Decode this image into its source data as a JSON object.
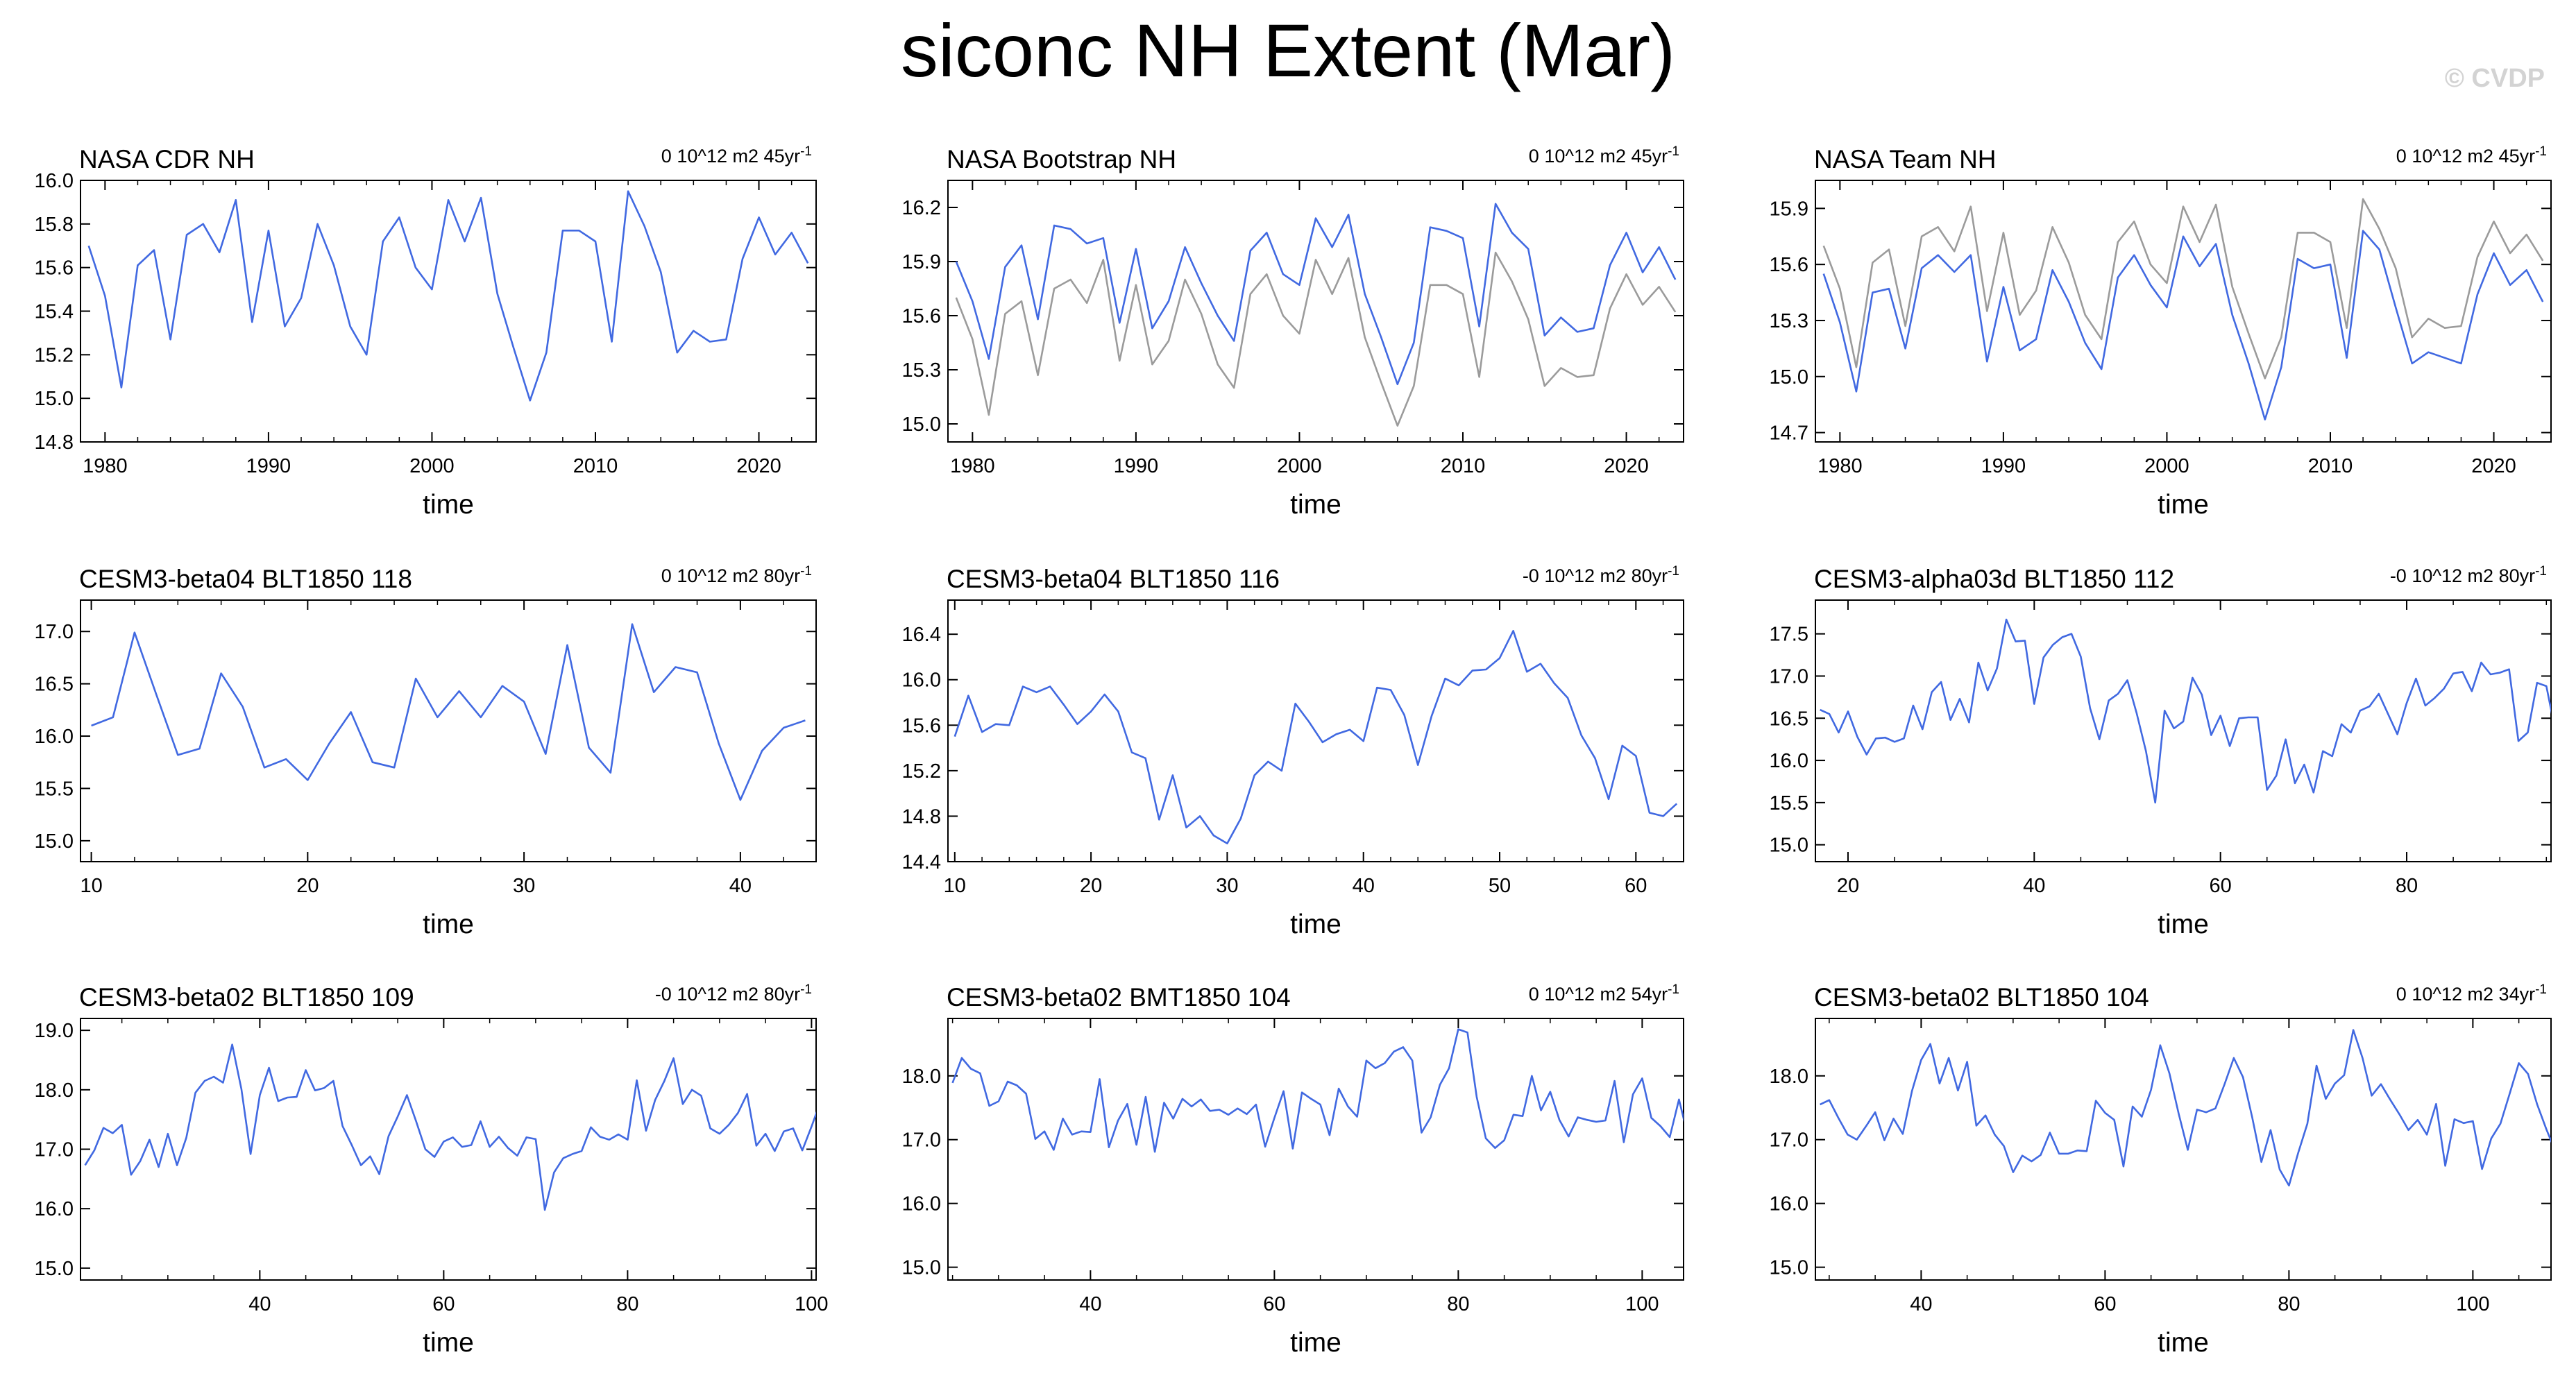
{
  "title": "siconc NH Extent (Mar)",
  "watermark": "© CVDP",
  "colors": {
    "series": "#4169e1",
    "reference": "#9b9b9b",
    "axis": "#000000"
  },
  "chart_data": [
    {
      "type": "line",
      "title": "NASA CDR NH",
      "stat": "0 10^12 m2 45yr",
      "stat_sup": "-1",
      "xlabel": "time",
      "ylabel": "",
      "xlim": [
        1978.5,
        2023.5
      ],
      "ylim": [
        14.8,
        16.0
      ],
      "xticks": [
        1980,
        1990,
        2000,
        2010,
        2020
      ],
      "yticks": [
        14.8,
        15.0,
        15.2,
        15.4,
        15.6,
        15.8,
        16.0
      ],
      "ytick_labels": [
        "14.8",
        "15.0",
        "15.2",
        "15.4",
        "15.6",
        "15.8",
        "16.0"
      ],
      "series": [
        {
          "name": "NASA CDR NH",
          "x_start": 1979,
          "x_step": 1,
          "values": [
            15.7,
            15.47,
            15.05,
            15.61,
            15.68,
            15.27,
            15.75,
            15.8,
            15.67,
            15.91,
            15.35,
            15.77,
            15.33,
            15.46,
            15.8,
            15.61,
            15.33,
            15.2,
            15.72,
            15.83,
            15.6,
            15.5,
            15.91,
            15.72,
            15.92,
            15.48,
            15.23,
            14.99,
            15.21,
            15.77,
            15.77,
            15.72,
            15.26,
            15.95,
            15.79,
            15.58,
            15.21,
            15.31,
            15.26,
            15.27,
            15.64,
            15.83,
            15.66,
            15.76,
            15.62
          ]
        }
      ]
    },
    {
      "type": "line",
      "title": "NASA Bootstrap NH",
      "stat": "0 10^12 m2 45yr",
      "stat_sup": "-1",
      "xlabel": "time",
      "ylabel": "",
      "xlim": [
        1978.5,
        2023.5
      ],
      "ylim": [
        14.9,
        16.35
      ],
      "xticks": [
        1980,
        1990,
        2000,
        2010,
        2020
      ],
      "yticks": [
        15.0,
        15.3,
        15.6,
        15.9,
        16.2
      ],
      "ytick_labels": [
        "15.0",
        "15.3",
        "15.6",
        "15.9",
        "16.2"
      ],
      "series": [
        {
          "name": "reference",
          "x_start": 1979,
          "x_step": 1,
          "values": [
            15.7,
            15.47,
            15.05,
            15.61,
            15.68,
            15.27,
            15.75,
            15.8,
            15.67,
            15.91,
            15.35,
            15.77,
            15.33,
            15.46,
            15.8,
            15.61,
            15.33,
            15.2,
            15.72,
            15.83,
            15.6,
            15.5,
            15.91,
            15.72,
            15.92,
            15.48,
            15.23,
            14.99,
            15.21,
            15.77,
            15.77,
            15.72,
            15.26,
            15.95,
            15.79,
            15.58,
            15.21,
            15.31,
            15.26,
            15.27,
            15.64,
            15.83,
            15.66,
            15.76,
            15.62
          ]
        },
        {
          "name": "NASA Bootstrap NH",
          "x_start": 1979,
          "x_step": 1,
          "values": [
            15.9,
            15.68,
            15.36,
            15.87,
            15.99,
            15.58,
            16.1,
            16.08,
            16.0,
            16.03,
            15.56,
            15.97,
            15.53,
            15.68,
            15.98,
            15.78,
            15.6,
            15.46,
            15.96,
            16.06,
            15.83,
            15.77,
            16.14,
            15.98,
            16.16,
            15.72,
            15.48,
            15.22,
            15.45,
            16.09,
            16.07,
            16.03,
            15.54,
            16.22,
            16.06,
            15.97,
            15.49,
            15.59,
            15.51,
            15.53,
            15.88,
            16.06,
            15.84,
            15.98,
            15.8
          ]
        }
      ]
    },
    {
      "type": "line",
      "title": "NASA Team NH",
      "stat": "0 10^12 m2 45yr",
      "stat_sup": "-1",
      "xlabel": "time",
      "ylabel": "",
      "xlim": [
        1978.5,
        2023.5
      ],
      "ylim": [
        14.65,
        16.05
      ],
      "xticks": [
        1980,
        1990,
        2000,
        2010,
        2020
      ],
      "yticks": [
        14.7,
        15.0,
        15.3,
        15.6,
        15.9
      ],
      "ytick_labels": [
        "14.7",
        "15.0",
        "15.3",
        "15.6",
        "15.9"
      ],
      "series": [
        {
          "name": "reference",
          "x_start": 1979,
          "x_step": 1,
          "values": [
            15.7,
            15.47,
            15.05,
            15.61,
            15.68,
            15.27,
            15.75,
            15.8,
            15.67,
            15.91,
            15.35,
            15.77,
            15.33,
            15.46,
            15.8,
            15.61,
            15.33,
            15.2,
            15.72,
            15.83,
            15.6,
            15.5,
            15.91,
            15.72,
            15.92,
            15.48,
            15.23,
            14.99,
            15.21,
            15.77,
            15.77,
            15.72,
            15.26,
            15.95,
            15.79,
            15.58,
            15.21,
            15.31,
            15.26,
            15.27,
            15.64,
            15.83,
            15.66,
            15.76,
            15.62
          ]
        },
        {
          "name": "NASA Team NH",
          "x_start": 1979,
          "x_step": 1,
          "values": [
            15.55,
            15.29,
            14.92,
            15.45,
            15.47,
            15.15,
            15.58,
            15.65,
            15.56,
            15.65,
            15.08,
            15.48,
            15.14,
            15.2,
            15.57,
            15.4,
            15.18,
            15.04,
            15.53,
            15.65,
            15.49,
            15.37,
            15.75,
            15.59,
            15.71,
            15.33,
            15.07,
            14.77,
            15.05,
            15.63,
            15.58,
            15.6,
            15.1,
            15.78,
            15.68,
            15.37,
            15.07,
            15.13,
            15.1,
            15.07,
            15.44,
            15.66,
            15.49,
            15.57,
            15.4
          ]
        }
      ]
    },
    {
      "type": "line",
      "title": "CESM3-beta04 BLT1850 118",
      "stat": "0 10^12 m2 80yr",
      "stat_sup": "-1",
      "xlabel": "time",
      "ylabel": "",
      "xlim": [
        9.5,
        43.5
      ],
      "ylim": [
        14.8,
        17.3
      ],
      "xticks": [
        10,
        20,
        30,
        40
      ],
      "yticks": [
        15.0,
        15.5,
        16.0,
        16.5,
        17.0
      ],
      "ytick_labels": [
        "15.0",
        "15.5",
        "16.0",
        "16.5",
        "17.0"
      ],
      "series": [
        {
          "name": "CESM3-beta04 BLT1850 118",
          "x_start": 10,
          "x_step": 1,
          "values": [
            16.1,
            16.18,
            16.99,
            16.4,
            15.82,
            15.88,
            16.6,
            16.28,
            15.7,
            15.78,
            15.58,
            15.93,
            16.23,
            15.75,
            15.7,
            16.55,
            16.18,
            16.43,
            16.18,
            16.48,
            16.33,
            15.83,
            16.87,
            15.89,
            15.65,
            17.07,
            16.42,
            16.66,
            16.61,
            15.93,
            15.39,
            15.86,
            16.08,
            16.15
          ]
        }
      ]
    },
    {
      "type": "line",
      "title": "CESM3-beta04 BLT1850 116",
      "stat": "-0 10^12 m2 80yr",
      "stat_sup": "-1",
      "xlabel": "time",
      "ylabel": "",
      "xlim": [
        9.5,
        63.5
      ],
      "ylim": [
        14.4,
        16.7
      ],
      "xticks": [
        10,
        20,
        30,
        40,
        50,
        60
      ],
      "yticks": [
        14.4,
        14.8,
        15.2,
        15.6,
        16.0,
        16.4
      ],
      "ytick_labels": [
        "14.4",
        "14.8",
        "15.2",
        "15.6",
        "16.0",
        "16.4"
      ],
      "series": [
        {
          "name": "CESM3-beta04 BLT1850 116",
          "x_start": 10,
          "x_step": 1,
          "values": [
            15.5,
            15.86,
            15.54,
            15.61,
            15.6,
            15.94,
            15.89,
            15.94,
            15.78,
            15.61,
            15.72,
            15.87,
            15.72,
            15.36,
            15.31,
            14.77,
            15.16,
            14.7,
            14.8,
            14.63,
            14.56,
            14.78,
            15.16,
            15.28,
            15.2,
            15.79,
            15.63,
            15.45,
            15.52,
            15.56,
            15.46,
            15.93,
            15.91,
            15.69,
            15.25,
            15.68,
            16.01,
            15.95,
            16.08,
            16.09,
            16.19,
            16.43,
            16.07,
            16.14,
            15.97,
            15.84,
            15.51,
            15.31,
            14.95,
            15.42,
            15.33,
            14.83,
            14.8,
            14.91
          ]
        }
      ]
    },
    {
      "type": "line",
      "title": "CESM3-alpha03d BLT1850 112",
      "stat": "-0 10^12 m2 80yr",
      "stat_sup": "-1",
      "xlabel": "time",
      "ylabel": "",
      "xlim": [
        16.5,
        95.5
      ],
      "ylim": [
        14.8,
        17.9
      ],
      "xticks": [
        20,
        40,
        60,
        80
      ],
      "yticks": [
        15.0,
        15.5,
        16.0,
        16.5,
        17.0,
        17.5
      ],
      "ytick_labels": [
        "15.0",
        "15.5",
        "16.0",
        "16.5",
        "17.0",
        "17.5"
      ],
      "series": [
        {
          "name": "CESM3-alpha03d BLT1850 112",
          "x_start": 17,
          "x_step": 1,
          "values": [
            16.6,
            16.55,
            16.33,
            16.58,
            16.28,
            16.07,
            16.26,
            16.27,
            16.22,
            16.26,
            16.65,
            16.37,
            16.81,
            16.93,
            16.48,
            16.73,
            16.45,
            17.16,
            16.83,
            17.09,
            17.67,
            17.41,
            17.42,
            16.67,
            17.22,
            17.37,
            17.46,
            17.5,
            17.23,
            16.62,
            16.25,
            16.71,
            16.79,
            16.95,
            16.56,
            16.11,
            15.5,
            16.59,
            16.38,
            16.46,
            16.98,
            16.78,
            16.3,
            16.53,
            16.17,
            16.5,
            16.51,
            16.51,
            15.65,
            15.82,
            16.25,
            15.73,
            15.95,
            15.62,
            16.11,
            16.05,
            16.43,
            16.33,
            16.59,
            16.64,
            16.79,
            16.55,
            16.31,
            16.68,
            16.97,
            16.65,
            16.74,
            16.85,
            17.03,
            17.05,
            16.82,
            17.16,
            17.02,
            17.04,
            17.08,
            16.23,
            16.33,
            16.92,
            16.88,
            16.33,
            16.31,
            16.55
          ]
        }
      ]
    },
    {
      "type": "line",
      "title": "CESM3-beta02 BLT1850 109",
      "stat": "-0 10^12 m2 80yr",
      "stat_sup": "-1",
      "xlabel": "time",
      "ylabel": "",
      "xlim": [
        20.5,
        100.5
      ],
      "ylim": [
        14.8,
        19.2
      ],
      "xticks": [
        40,
        60,
        80,
        100
      ],
      "yticks": [
        15.0,
        16.0,
        17.0,
        18.0,
        19.0
      ],
      "ytick_labels": [
        "15.0",
        "16.0",
        "17.0",
        "18.0",
        "19.0"
      ],
      "series": [
        {
          "name": "CESM3-beta02 BLT1850 109",
          "x_start": 21,
          "x_step": 1,
          "values": [
            16.73,
            16.98,
            17.36,
            17.27,
            17.41,
            16.57,
            16.8,
            17.16,
            16.7,
            17.26,
            16.73,
            17.19,
            17.95,
            18.15,
            18.22,
            18.12,
            18.76,
            18.01,
            16.92,
            17.91,
            18.37,
            17.81,
            17.87,
            17.88,
            18.33,
            17.99,
            18.03,
            18.15,
            17.39,
            17.07,
            16.73,
            16.88,
            16.58,
            17.22,
            17.55,
            17.91,
            17.47,
            17.0,
            16.87,
            17.13,
            17.2,
            17.04,
            17.07,
            17.47,
            17.04,
            17.21,
            17.02,
            16.89,
            17.2,
            17.17,
            15.98,
            16.61,
            16.85,
            16.92,
            16.97,
            17.37,
            17.21,
            17.16,
            17.25,
            17.16,
            18.16,
            17.31,
            17.83,
            18.15,
            18.53,
            17.76,
            18.0,
            17.9,
            17.35,
            17.26,
            17.41,
            17.61,
            17.93,
            17.06,
            17.26,
            16.97,
            17.3,
            17.35,
            16.98,
            17.38,
            17.81
          ]
        }
      ]
    },
    {
      "type": "line",
      "title": "CESM3-beta02 BMT1850 104",
      "stat": "0 10^12 m2 54yr",
      "stat_sup": "-1",
      "xlabel": "time",
      "ylabel": "",
      "xlim": [
        24.5,
        104.5
      ],
      "ylim": [
        14.8,
        18.9
      ],
      "xticks": [
        40,
        60,
        80,
        100
      ],
      "yticks": [
        15.0,
        16.0,
        17.0,
        18.0
      ],
      "ytick_labels": [
        "15.0",
        "16.0",
        "17.0",
        "18.0"
      ],
      "series": [
        {
          "name": "CESM3-beta02 BMT1850 104",
          "x_start": 25,
          "x_step": 1,
          "values": [
            17.89,
            18.28,
            18.11,
            18.04,
            17.53,
            17.6,
            17.91,
            17.85,
            17.72,
            17.01,
            17.13,
            16.84,
            17.33,
            17.08,
            17.13,
            17.12,
            17.95,
            16.88,
            17.3,
            17.56,
            16.92,
            17.67,
            16.81,
            17.58,
            17.33,
            17.64,
            17.52,
            17.63,
            17.45,
            17.47,
            17.39,
            17.49,
            17.4,
            17.55,
            16.89,
            17.34,
            17.76,
            16.86,
            17.74,
            17.64,
            17.55,
            17.07,
            17.8,
            17.52,
            17.36,
            18.24,
            18.12,
            18.2,
            18.38,
            18.45,
            18.24,
            17.11,
            17.35,
            17.86,
            18.12,
            18.73,
            18.68,
            17.67,
            17.02,
            16.87,
            16.99,
            17.39,
            17.37,
            18.0,
            17.46,
            17.75,
            17.31,
            17.05,
            17.35,
            17.31,
            17.28,
            17.3,
            17.92,
            16.96,
            17.71,
            17.96,
            17.34,
            17.21,
            17.04,
            17.63,
            17.04,
            17.91,
            17.85,
            18.02,
            17.88
          ]
        }
      ]
    },
    {
      "type": "line",
      "title": "CESM3-beta02 BLT1850 104",
      "stat": "0 10^12 m2 34yr",
      "stat_sup": "-1",
      "xlabel": "time",
      "ylabel": "",
      "xlim": [
        28.5,
        108.5
      ],
      "ylim": [
        14.8,
        18.9
      ],
      "xticks": [
        40,
        60,
        80,
        100
      ],
      "yticks": [
        15.0,
        16.0,
        17.0,
        18.0
      ],
      "ytick_labels": [
        "15.0",
        "16.0",
        "17.0",
        "18.0"
      ],
      "series": [
        {
          "name": "CESM3-beta02 BLT1850 104",
          "x_start": 29,
          "x_step": 1,
          "values": [
            17.55,
            17.62,
            17.34,
            17.08,
            17.0,
            17.21,
            17.43,
            16.99,
            17.33,
            17.09,
            17.76,
            18.25,
            18.5,
            17.88,
            18.28,
            17.77,
            18.22,
            17.22,
            17.38,
            17.08,
            16.9,
            16.49,
            16.75,
            16.66,
            16.76,
            17.11,
            16.78,
            16.78,
            16.83,
            16.82,
            17.61,
            17.42,
            17.31,
            16.58,
            17.52,
            17.36,
            17.78,
            18.48,
            18.04,
            17.41,
            16.84,
            17.47,
            17.43,
            17.49,
            17.87,
            18.28,
            17.98,
            17.35,
            16.65,
            17.15,
            16.53,
            16.28,
            16.79,
            17.25,
            18.16,
            17.64,
            17.88,
            18.01,
            18.72,
            18.28,
            17.69,
            17.87,
            17.63,
            17.4,
            17.15,
            17.31,
            17.08,
            17.56,
            16.59,
            17.32,
            17.26,
            17.29,
            16.54,
            17.02,
            17.25,
            17.72,
            18.2,
            18.03,
            17.55,
            17.16,
            16.81
          ]
        }
      ]
    }
  ]
}
